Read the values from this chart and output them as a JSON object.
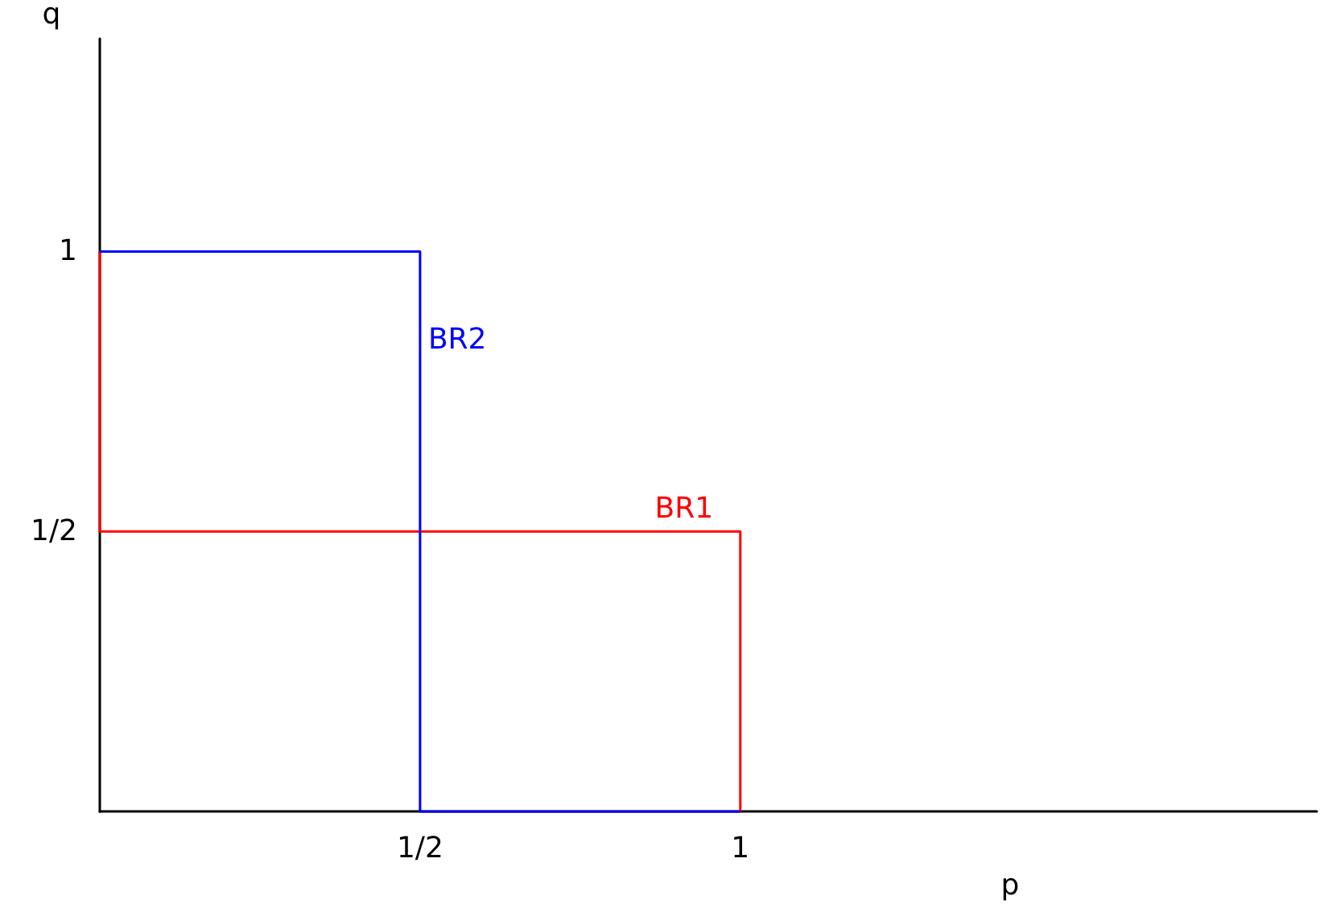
{
  "chart_data": {
    "type": "line",
    "xlabel": "p",
    "ylabel": "q",
    "xlim": [
      0,
      1.9
    ],
    "ylim": [
      0,
      1.38
    ],
    "xticks": [
      {
        "value": 0.5,
        "label": "1/2"
      },
      {
        "value": 1,
        "label": "1"
      }
    ],
    "yticks": [
      {
        "value": 0.5,
        "label": "1/2"
      },
      {
        "value": 1,
        "label": "1"
      }
    ],
    "grid": false,
    "legend": false,
    "marker": "none",
    "line_style": "solid",
    "series": [
      {
        "name": "BR1",
        "color": "#ff0000",
        "x": [
          0,
          0,
          1,
          1
        ],
        "values": [
          1,
          0.5,
          0.5,
          0
        ]
      },
      {
        "name": "BR2",
        "color": "#0000ff",
        "x": [
          0,
          0.5,
          0.5,
          1
        ],
        "values": [
          1,
          1,
          0,
          0
        ]
      }
    ]
  }
}
